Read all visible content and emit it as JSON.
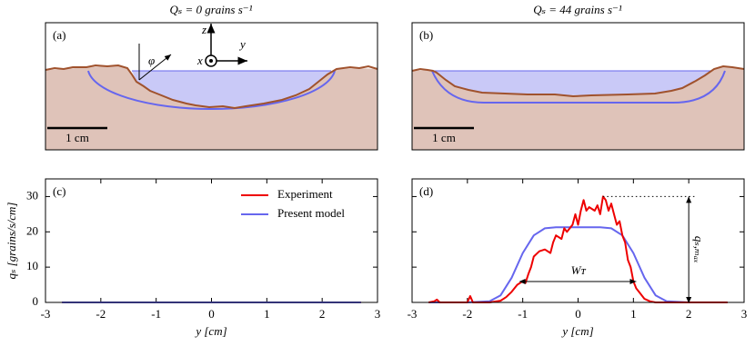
{
  "diagrams": [
    {
      "title": "Qₛ = 0 grains s⁻¹",
      "label": "(a)",
      "scale": "1 cm",
      "axis_z": "z",
      "axis_y": "y",
      "axis_x": "x",
      "angle": "φ"
    },
    {
      "title": "Qₛ = 44 grains s⁻¹",
      "label": "(b)",
      "scale": "1 cm"
    }
  ],
  "chart_data": [
    {
      "type": "line",
      "label": "(c)",
      "xlabel": "y [cm]",
      "ylabel": "qₛ [grains/s/cm]",
      "xlim": [
        -3,
        3
      ],
      "ylim": [
        0,
        35
      ],
      "xticks": [
        -3,
        -2,
        -1,
        0,
        1,
        2,
        3
      ],
      "yticks": [
        0,
        10,
        20,
        30
      ],
      "show_ytick_labels": true,
      "legend": "upper right",
      "series": [
        {
          "name": "Experiment",
          "color": "#ee0000",
          "x": [
            -2.7,
            2.7
          ],
          "values": [
            0,
            0
          ]
        },
        {
          "name": "Present model",
          "color": "#6666ee",
          "x": [
            -2.7,
            2.7
          ],
          "values": [
            0,
            0
          ]
        }
      ]
    },
    {
      "type": "line",
      "label": "(d)",
      "xlabel": "y [cm]",
      "xlim": [
        -3,
        3
      ],
      "ylim": [
        0,
        35
      ],
      "xticks": [
        -3,
        -2,
        -1,
        0,
        1,
        2,
        3
      ],
      "yticks": [
        0,
        10,
        20,
        30
      ],
      "show_ytick_labels": false,
      "annotations": [
        "Wᴛ",
        "qₛ,ₘₐₓ"
      ],
      "series": [
        {
          "color": "#6666ee",
          "x": [
            -2.7,
            -2.0,
            -1.6,
            -1.4,
            -1.2,
            -1.0,
            -0.8,
            -0.6,
            -0.4,
            0,
            0.4,
            0.6,
            0.8,
            1.0,
            1.2,
            1.4,
            1.6,
            2.0,
            2.7
          ],
          "values": [
            0,
            0,
            0.3,
            2,
            7,
            14,
            19,
            21,
            21.3,
            21.3,
            21.3,
            21,
            19,
            14,
            7,
            2,
            0.3,
            0,
            0
          ]
        },
        {
          "color": "#ee0000",
          "x": [
            -2.7,
            -2.6,
            -2.55,
            -2.5,
            -2.0,
            -1.95,
            -1.9,
            -1.6,
            -1.4,
            -1.3,
            -1.2,
            -1.1,
            -1.0,
            -0.95,
            -0.9,
            -0.85,
            -0.8,
            -0.7,
            -0.6,
            -0.5,
            -0.45,
            -0.4,
            -0.3,
            -0.25,
            -0.2,
            -0.1,
            -0.05,
            0,
            0.05,
            0.1,
            0.15,
            0.2,
            0.3,
            0.35,
            0.4,
            0.45,
            0.5,
            0.55,
            0.6,
            0.65,
            0.7,
            0.75,
            0.8,
            0.85,
            0.9,
            0.95,
            1.0,
            1.05,
            1.1,
            1.2,
            1.3,
            1.4,
            2.7
          ],
          "values": [
            0,
            0.3,
            0.8,
            0,
            0,
            1.8,
            0,
            0,
            0.5,
            1.5,
            3,
            5,
            6,
            5.5,
            8,
            10,
            13,
            14.5,
            15,
            14,
            17,
            19,
            18,
            21,
            20,
            22,
            25,
            22,
            26,
            29,
            26,
            27,
            26,
            27.5,
            25,
            30,
            29,
            26,
            28,
            25,
            22,
            23,
            19,
            17,
            12,
            10,
            6,
            4,
            3,
            1,
            0.3,
            0,
            0
          ]
        }
      ]
    }
  ]
}
